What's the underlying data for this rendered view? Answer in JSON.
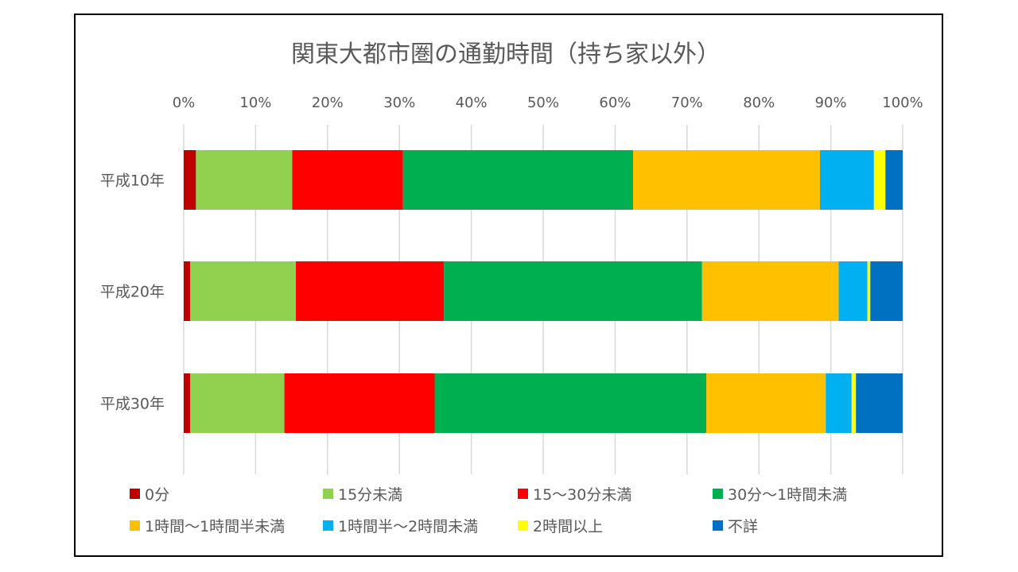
{
  "chart_data": {
    "type": "bar",
    "orientation": "horizontal",
    "stacked": "percent",
    "title": "関東大都市圏の通勤時間（持ち家以外）",
    "xlim": [
      0,
      100
    ],
    "xticks": [
      "0%",
      "10%",
      "20%",
      "30%",
      "40%",
      "50%",
      "60%",
      "70%",
      "80%",
      "90%",
      "100%"
    ],
    "grid": true,
    "legend_position": "bottom",
    "categories": [
      "平成10年",
      "平成20年",
      "平成30年"
    ],
    "series": [
      {
        "name": "0分",
        "color": "#c00000",
        "values": [
          1.7,
          0.9,
          0.9
        ]
      },
      {
        "name": "15分未満",
        "color": "#92d050",
        "values": [
          13.4,
          14.7,
          13.1
        ]
      },
      {
        "name": "15～30分未満",
        "color": "#ff0000",
        "values": [
          15.4,
          20.6,
          20.9
        ]
      },
      {
        "name": "30分～1時間未満",
        "color": "#00b050",
        "values": [
          32.0,
          35.9,
          37.8
        ]
      },
      {
        "name": "1時間～1時間半未満",
        "color": "#ffc000",
        "values": [
          26.0,
          19.0,
          16.6
        ]
      },
      {
        "name": "1時間半～2時間未満",
        "color": "#00b0f0",
        "values": [
          7.5,
          4.0,
          3.6
        ]
      },
      {
        "name": "2時間以上",
        "color": "#ffff00",
        "values": [
          1.6,
          0.4,
          0.6
        ]
      },
      {
        "name": "不詳",
        "color": "#0070c0",
        "values": [
          2.4,
          4.5,
          6.5
        ]
      }
    ]
  }
}
